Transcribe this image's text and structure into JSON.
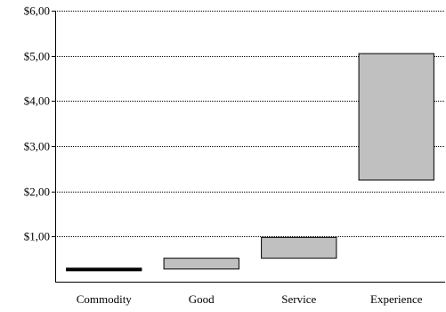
{
  "chart_data": {
    "type": "bar",
    "subtype": "floating-range",
    "categories": [
      "Commodity",
      "Good",
      "Service",
      "Experience"
    ],
    "ranges": [
      {
        "category": "Commodity",
        "low": 0.27,
        "high": 0.3
      },
      {
        "category": "Good",
        "low": 0.28,
        "high": 0.52
      },
      {
        "category": "Service",
        "low": 0.52,
        "high": 0.98
      },
      {
        "category": "Experience",
        "low": 2.25,
        "high": 5.05
      }
    ],
    "ylim": [
      0,
      6
    ],
    "yticks": [
      "$6,00",
      "$5,00",
      "$4,00",
      "$3,00",
      "$2,00",
      "$1,00"
    ],
    "ytick_values": [
      6,
      5,
      4,
      3,
      2,
      1
    ],
    "grid": "horizontal-dotted",
    "title": "",
    "xlabel": "",
    "ylabel": "",
    "colors": {
      "bar_fill": "#c0c0c0",
      "bar_stroke": "#000000",
      "axis": "#000000",
      "grid": "#000000"
    }
  }
}
